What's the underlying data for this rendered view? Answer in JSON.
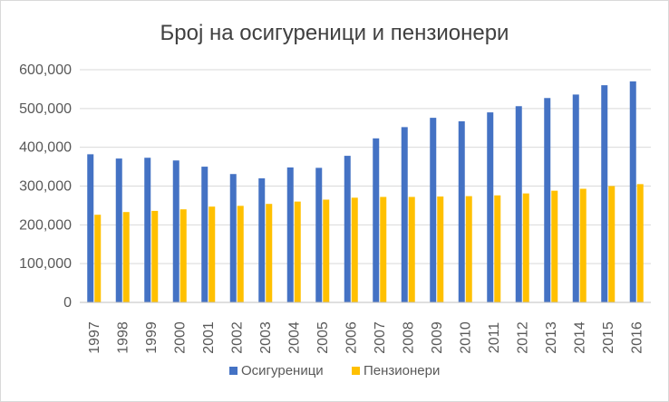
{
  "chart_data": {
    "type": "bar",
    "title": "Број на осигуреници и пензионери",
    "categories": [
      "1997",
      "1998",
      "1999",
      "2000",
      "2001",
      "2002",
      "2003",
      "2004",
      "2005",
      "2006",
      "2007",
      "2008",
      "2009",
      "2010",
      "2011",
      "2012",
      "2013",
      "2014",
      "2015",
      "2016"
    ],
    "series": [
      {
        "name": "Осигуреници",
        "color": "#4472c4",
        "values": [
          382000,
          371000,
          373000,
          366000,
          350000,
          331000,
          320000,
          348000,
          347000,
          378000,
          423000,
          452000,
          476000,
          467000,
          490000,
          506000,
          527000,
          536000,
          560000,
          570000
        ]
      },
      {
        "name": "Пензионери",
        "color": "#ffc000",
        "values": [
          226000,
          233000,
          236000,
          240000,
          247000,
          249000,
          254000,
          260000,
          265000,
          270000,
          272000,
          272000,
          273000,
          274000,
          276000,
          281000,
          288000,
          293000,
          300000,
          305000
        ]
      }
    ],
    "ylim": [
      0,
      600000
    ],
    "yticks": [
      "0",
      "100,000",
      "200,000",
      "300,000",
      "400,000",
      "500,000",
      "600,000"
    ],
    "ytick_values": [
      0,
      100000,
      200000,
      300000,
      400000,
      500000,
      600000
    ],
    "grid": true,
    "legend_position": "bottom",
    "xlabel": "",
    "ylabel": ""
  }
}
